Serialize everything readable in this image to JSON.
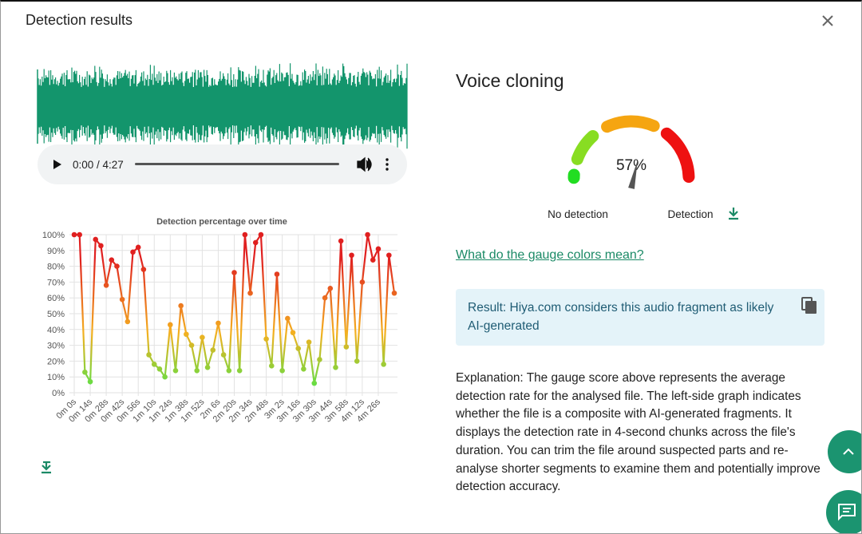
{
  "header": {
    "title": "Detection results"
  },
  "player": {
    "time": "0:00 / 4:27"
  },
  "chart_data": {
    "type": "line",
    "title": "Detection percentage over time",
    "categories": [
      "0m 0s",
      null,
      null,
      "0m 14s",
      null,
      null,
      "0m 28s",
      null,
      null,
      "0m 42s",
      null,
      null,
      "0m 56s",
      null,
      null,
      "1m 10s",
      null,
      null,
      "1m 24s",
      null,
      null,
      "1m 38s",
      null,
      null,
      "1m 52s",
      null,
      null,
      "2m 6s",
      null,
      null,
      "2m 20s",
      null,
      null,
      "2m 34s",
      null,
      null,
      "2m 48s",
      null,
      null,
      "3m 2s",
      null,
      null,
      "3m 16s",
      null,
      null,
      "3m 30s",
      null,
      null,
      "3m 44s",
      null,
      null,
      "3m 58s",
      null,
      null,
      "4m 12s",
      null,
      null,
      "4m 26s",
      null,
      null,
      null
    ],
    "values": [
      100,
      100,
      13,
      7,
      97,
      93,
      68,
      84,
      80,
      59,
      45,
      89,
      92,
      78,
      24,
      18,
      15,
      10,
      43,
      14,
      55,
      37,
      30,
      14,
      35,
      16,
      27,
      44,
      24,
      14,
      76,
      14,
      100,
      63,
      95,
      100,
      34,
      17,
      75,
      14,
      47,
      38,
      28,
      15,
      32,
      6,
      21,
      60,
      66,
      16,
      96,
      29,
      87,
      20,
      70,
      100,
      84,
      91,
      18,
      87,
      63
    ],
    "ylim": [
      0,
      100
    ],
    "yticks": [
      {
        "value": 0,
        "label": "0%"
      },
      {
        "value": 10,
        "label": "10%"
      },
      {
        "value": 20,
        "label": "20%"
      },
      {
        "value": 30,
        "label": "30%"
      },
      {
        "value": 40,
        "label": "40%"
      },
      {
        "value": 50,
        "label": "50%"
      },
      {
        "value": 60,
        "label": "60%"
      },
      {
        "value": 70,
        "label": "70%"
      },
      {
        "value": 80,
        "label": "80%"
      },
      {
        "value": 90,
        "label": "90%"
      },
      {
        "value": 100,
        "label": "100%"
      }
    ],
    "grid": true,
    "color_high": "#e02020",
    "color_low": "#66dd44"
  },
  "gauge": {
    "title": "Voice cloning",
    "value": 57,
    "value_label": "57%",
    "lim": [
      0,
      100
    ],
    "min_label": "No detection",
    "max_label": "Detection"
  },
  "link": "What do the gauge colors mean?",
  "result": "Result: Hiya.com considers this audio fragment as likely AI-generated",
  "explanation": "Explanation: The gauge score above represents the average detection rate for the analysed file. The left-side graph indicates whether the file is a composite with AI-generated fragments. It displays the detection rate in 4-second chunks across the file's duration. You can trim the file around suspected parts and re-analyse shorter segments to examine them and potentially improve detection accuracy."
}
